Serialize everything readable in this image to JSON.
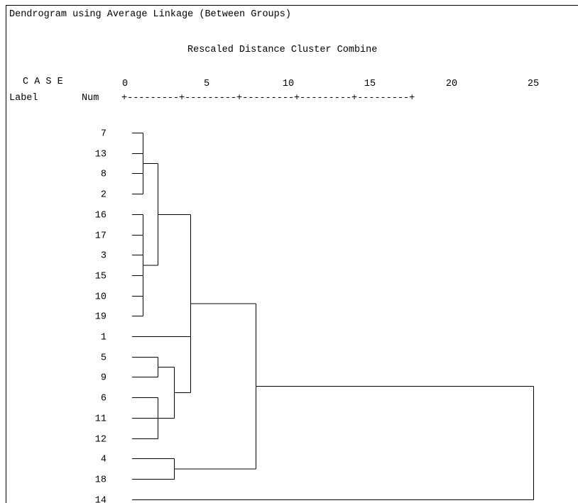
{
  "title": "Dendrogram using Average Linkage (Between Groups)",
  "subtitle": "Rescaled Distance Cluster Combine",
  "case_header": "C A S E",
  "label_header": "Label",
  "num_header": "Num",
  "axis_rule": "+---------+---------+---------+---------+---------+",
  "chart_data": {
    "type": "dendrogram",
    "title": "Dendrogram using Average Linkage (Between Groups)",
    "xlabel": "Rescaled Distance Cluster Combine",
    "xlim": [
      0,
      25
    ],
    "x_ticks": [
      0,
      5,
      10,
      15,
      20,
      25
    ],
    "leaves": [
      "7",
      "13",
      "8",
      "2",
      "16",
      "17",
      "3",
      "15",
      "10",
      "19",
      "1",
      "5",
      "9",
      "6",
      "11",
      "12",
      "4",
      "18",
      "14"
    ],
    "merges": [
      {
        "children": [
          "7",
          "13",
          "8",
          "2"
        ],
        "height": 1.1
      },
      {
        "children": [
          "16",
          "17",
          "3",
          "15",
          "10",
          "19"
        ],
        "height": 1.1
      },
      {
        "children": [
          "7-2",
          "16-19"
        ],
        "height": 2.0
      },
      {
        "children": [
          "5",
          "9"
        ],
        "height": 2.0
      },
      {
        "children": [
          "6",
          "11",
          "12"
        ],
        "height": 2.0
      },
      {
        "children": [
          "5-9",
          "6-12"
        ],
        "height": 3.0
      },
      {
        "children": [
          "7-19",
          "1",
          "5-12"
        ],
        "height": 4.0
      },
      {
        "children": [
          "4",
          "18"
        ],
        "height": 3.0
      },
      {
        "children": [
          "7-12",
          "4-18"
        ],
        "height": 8.0
      },
      {
        "children": [
          "7-18",
          "14"
        ],
        "height": 25.0
      }
    ]
  }
}
